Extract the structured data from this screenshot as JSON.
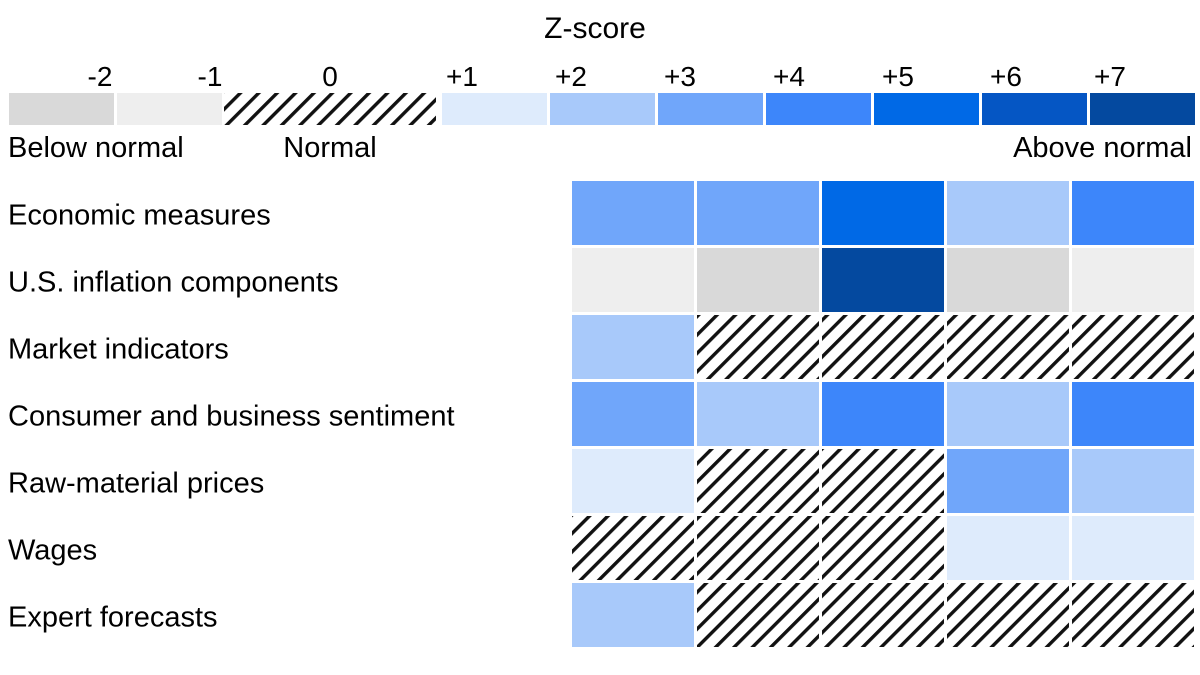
{
  "chart_data": {
    "type": "heatmap",
    "title": "Z-score",
    "colors": {
      "-2": "#d9d9d9",
      "-1": "#eeeeee",
      "0": "hatched",
      "1": "#deebfc",
      "2": "#a8c9fa",
      "3": "#70a6fa",
      "4": "#3d86fa",
      "5": "#0069e6",
      "6": "#0556c4",
      "7": "#04499f"
    },
    "legend": {
      "ticks": [
        "-2",
        "-1",
        "0",
        "+1",
        "+2",
        "+3",
        "+4",
        "+5",
        "+6",
        "+7"
      ],
      "scale_values": [
        -2,
        -1,
        0,
        1,
        2,
        3,
        4,
        5,
        6,
        7
      ],
      "labels": {
        "below": "Below normal",
        "normal": "Normal",
        "above": "Above normal"
      }
    },
    "rows": [
      "Economic measures",
      "U.S. inflation components",
      "Market indicators",
      "Consumer and business sentiment",
      "Raw-material prices",
      "Wages",
      "Expert forecasts"
    ],
    "values": [
      [
        3,
        3,
        5,
        2,
        4
      ],
      [
        -1,
        -2,
        7,
        -2,
        -1
      ],
      [
        2,
        0,
        0,
        0,
        0
      ],
      [
        3,
        2,
        4,
        2,
        4
      ],
      [
        1,
        0,
        0,
        3,
        2
      ],
      [
        0,
        0,
        0,
        1,
        1
      ],
      [
        2,
        0,
        0,
        0,
        0
      ]
    ]
  }
}
